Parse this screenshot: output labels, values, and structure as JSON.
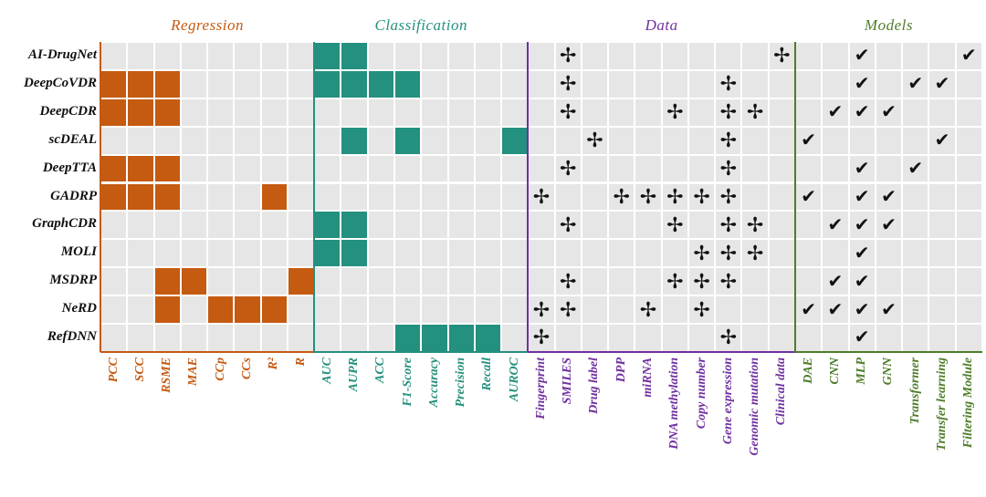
{
  "colors": {
    "Regression": "#C55A11",
    "Classification": "#24907F",
    "Data": "#7030A0",
    "Models": "#4E7D2A",
    "empty": "#E6E6E6"
  },
  "groups": [
    {
      "title": "Regression",
      "mark": "filled-square",
      "columns": [
        "PCC",
        "SCC",
        "RSME",
        "MAE",
        "CCp",
        "CCs",
        "R²",
        "R"
      ]
    },
    {
      "title": "Classification",
      "mark": "filled-square",
      "columns": [
        "AUC",
        "AUPR",
        "ACC",
        "F1-Score",
        "Accuracy",
        "Precision",
        "Recall",
        "AUROC"
      ]
    },
    {
      "title": "Data",
      "mark": "cross-icon",
      "symbol": "✢",
      "columns": [
        "Fingerprint",
        "SMILES",
        "Drug label",
        "DPP",
        "miRNA",
        "DNA methylation",
        "Copy number",
        "Gene expression",
        "Genomic mutation",
        "Clinical data"
      ]
    },
    {
      "title": "Models",
      "mark": "check-icon",
      "symbol": "✔",
      "columns": [
        "DAE",
        "CNN",
        "MLP",
        "GNN",
        "Transformer",
        "Transfer learning",
        "Filtering Module"
      ]
    }
  ],
  "rows": [
    {
      "name": "AI-DrugNet",
      "Regression": [],
      "Classification": [
        "AUC",
        "AUPR"
      ],
      "Data": [
        "SMILES",
        "Clinical data"
      ],
      "Models": [
        "MLP",
        "Filtering Module"
      ]
    },
    {
      "name": "DeepCoVDR",
      "Regression": [
        "PCC",
        "SCC",
        "RSME"
      ],
      "Classification": [
        "AUC",
        "AUPR",
        "ACC",
        "F1-Score"
      ],
      "Data": [
        "SMILES",
        "Gene expression"
      ],
      "Models": [
        "MLP",
        "Transformer",
        "Transfer learning"
      ]
    },
    {
      "name": "DeepCDR",
      "Regression": [
        "PCC",
        "SCC",
        "RSME"
      ],
      "Classification": [],
      "Data": [
        "SMILES",
        "DNA methylation",
        "Gene expression",
        "Genomic mutation"
      ],
      "Models": [
        "CNN",
        "MLP",
        "GNN"
      ]
    },
    {
      "name": "scDEAL",
      "Regression": [],
      "Classification": [
        "AUPR",
        "F1-Score",
        "AUROC"
      ],
      "Data": [
        "Drug label",
        "Gene expression"
      ],
      "Models": [
        "DAE",
        "Transfer learning"
      ]
    },
    {
      "name": "DeepTTA",
      "Regression": [
        "PCC",
        "SCC",
        "RSME"
      ],
      "Classification": [],
      "Data": [
        "SMILES",
        "Gene expression"
      ],
      "Models": [
        "MLP",
        "Transformer"
      ]
    },
    {
      "name": "GADRP",
      "Regression": [
        "PCC",
        "SCC",
        "RSME",
        "R²"
      ],
      "Classification": [],
      "Data": [
        "Fingerprint",
        "DPP",
        "miRNA",
        "DNA methylation",
        "Copy number",
        "Gene expression"
      ],
      "Models": [
        "DAE",
        "MLP",
        "GNN"
      ]
    },
    {
      "name": "GraphCDR",
      "Regression": [],
      "Classification": [
        "AUC",
        "AUPR"
      ],
      "Data": [
        "SMILES",
        "DNA methylation",
        "Gene expression",
        "Genomic mutation"
      ],
      "Models": [
        "CNN",
        "MLP",
        "GNN"
      ]
    },
    {
      "name": "MOLI",
      "Regression": [],
      "Classification": [
        "AUC",
        "AUPR"
      ],
      "Data": [
        "Copy number",
        "Gene expression",
        "Genomic mutation"
      ],
      "Models": [
        "MLP"
      ]
    },
    {
      "name": "MSDRP",
      "Regression": [
        "RSME",
        "MAE",
        "R"
      ],
      "Classification": [],
      "Data": [
        "SMILES",
        "DNA methylation",
        "Copy number",
        "Gene expression"
      ],
      "Models": [
        "CNN",
        "MLP"
      ]
    },
    {
      "name": "NeRD",
      "Regression": [
        "RSME",
        "CCp",
        "CCs",
        "R²"
      ],
      "Classification": [],
      "Data": [
        "Fingerprint",
        "SMILES",
        "miRNA",
        "Copy number"
      ],
      "Models": [
        "DAE",
        "CNN",
        "MLP",
        "GNN"
      ]
    },
    {
      "name": "RefDNN",
      "Regression": [],
      "Classification": [
        "F1-Score",
        "Accuracy",
        "Precision",
        "Recall"
      ],
      "Data": [
        "Fingerprint",
        "Gene expression"
      ],
      "Models": [
        "MLP"
      ]
    }
  ]
}
